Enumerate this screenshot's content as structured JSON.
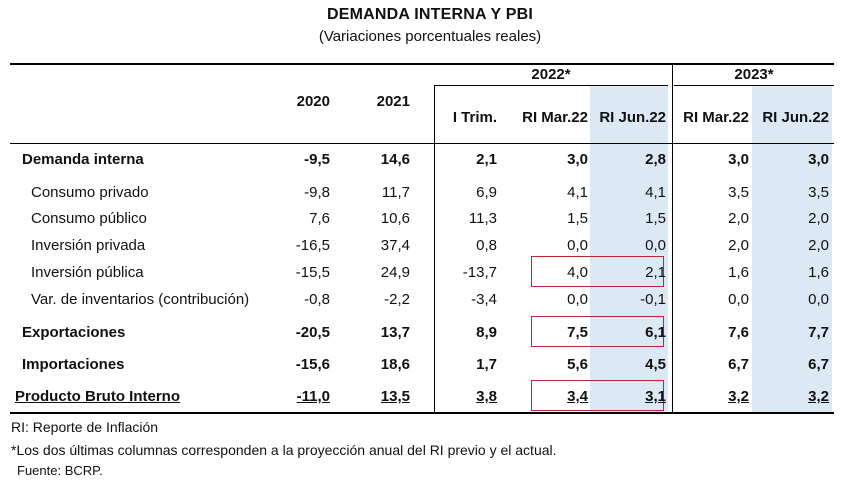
{
  "title": "DEMANDA INTERNA Y PBI",
  "subtitle": "(Variaciones porcentuales reales)",
  "groups": {
    "g2022": "2022*",
    "g2023": "2023*"
  },
  "columns": [
    "2020",
    "2021",
    "I Trim.",
    "RI Mar.22",
    "RI Jun.22",
    "RI Mar.22",
    "RI Jun.22"
  ],
  "rows": [
    {
      "label": "Demanda interna",
      "values": [
        "-9,5",
        "14,6",
        "2,1",
        "3,0",
        "2,8",
        "3,0",
        "3,0"
      ]
    },
    {
      "label": "Consumo privado",
      "values": [
        "-9,8",
        "11,7",
        "6,9",
        "4,1",
        "4,1",
        "3,5",
        "3,5"
      ]
    },
    {
      "label": "Consumo público",
      "values": [
        "7,6",
        "10,6",
        "11,3",
        "1,5",
        "1,5",
        "2,0",
        "2,0"
      ]
    },
    {
      "label": "Inversión privada",
      "values": [
        "-16,5",
        "37,4",
        "0,8",
        "0,0",
        "0,0",
        "2,0",
        "2,0"
      ]
    },
    {
      "label": "Inversión pública",
      "values": [
        "-15,5",
        "24,9",
        "-13,7",
        "4,0",
        "2,1",
        "1,6",
        "1,6"
      ]
    },
    {
      "label": "Var. de inventarios (contribución)",
      "values": [
        "-0,8",
        "-2,2",
        "-3,4",
        "0,0",
        "-0,1",
        "0,0",
        "0,0"
      ]
    },
    {
      "label": "Exportaciones",
      "values": [
        "-20,5",
        "13,7",
        "8,9",
        "7,5",
        "6,1",
        "7,6",
        "7,7"
      ]
    },
    {
      "label": "Importaciones",
      "values": [
        "-15,6",
        "18,6",
        "1,7",
        "5,6",
        "4,5",
        "6,7",
        "6,7"
      ]
    },
    {
      "label": "Producto Bruto Interno",
      "values": [
        "-11,0",
        "13,5",
        "3,8",
        "3,4",
        "3,1",
        "3,2",
        "3,2"
      ]
    }
  ],
  "notes": [
    "RI: Reporte de Inflación",
    "*Los dos últimas columnas corresponden a la proyección anual del RI previo y el actual.",
    "Fuente: BCRP."
  ],
  "colors": {
    "highlight": "#dce9f5",
    "box": "#c0262d"
  }
}
